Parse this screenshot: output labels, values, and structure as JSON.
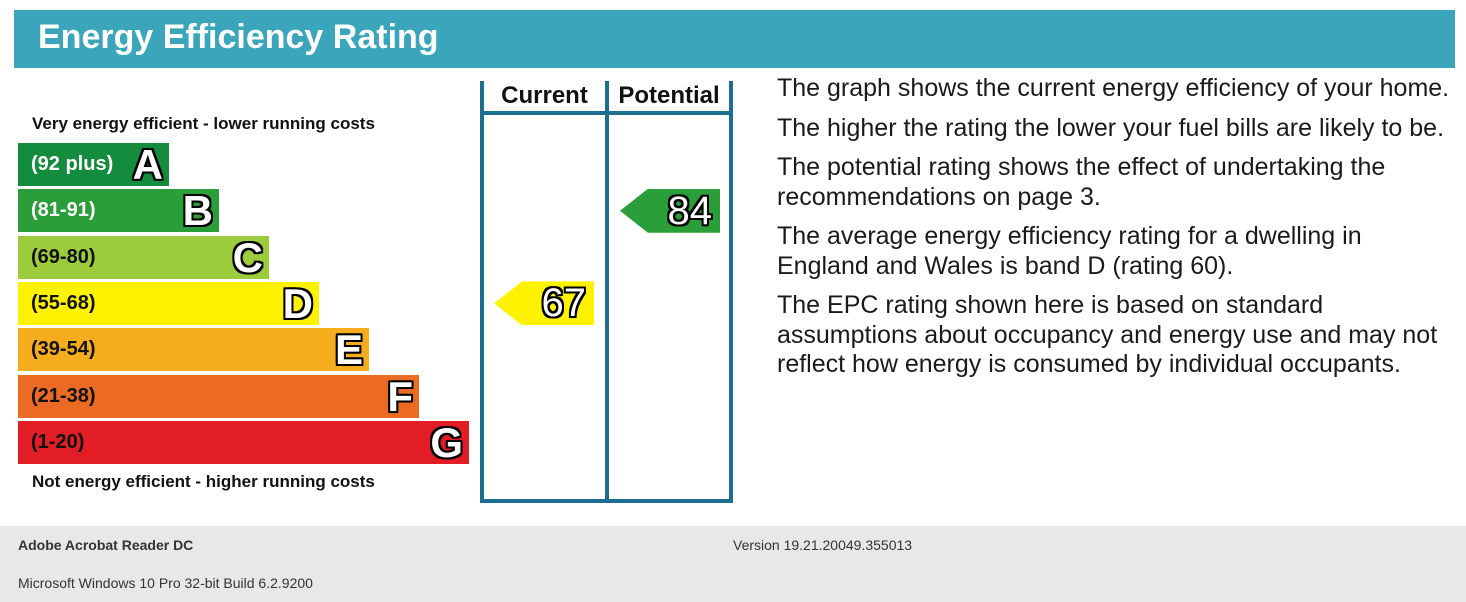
{
  "header": {
    "title": "Energy Efficiency Rating"
  },
  "chart_data": {
    "type": "bar",
    "title": "Energy Efficiency Rating",
    "top_note": "Very energy efficient - lower running costs",
    "bottom_note": "Not energy efficient - higher running costs",
    "bands": [
      {
        "letter": "A",
        "range": "(92 plus)",
        "color": "#138c3e",
        "text_color": "#ffffff"
      },
      {
        "letter": "B",
        "range": "(81-91)",
        "color": "#2a9f39",
        "text_color": "#ffffff"
      },
      {
        "letter": "C",
        "range": "(69-80)",
        "color": "#9ccb3b",
        "text_color": "#111111"
      },
      {
        "letter": "D",
        "range": "(55-68)",
        "color": "#fff200",
        "text_color": "#111111"
      },
      {
        "letter": "E",
        "range": "(39-54)",
        "color": "#f6ad1d",
        "text_color": "#111111"
      },
      {
        "letter": "F",
        "range": "(21-38)",
        "color": "#ec6b24",
        "text_color": "#111111"
      },
      {
        "letter": "G",
        "range": "(1-20)",
        "color": "#e21d26",
        "text_color": "#111111"
      }
    ],
    "columns": [
      {
        "label": "Current",
        "value": 67,
        "band": "D",
        "color": "#fff200"
      },
      {
        "label": "Potential",
        "value": 84,
        "band": "B",
        "color": "#2a9f39"
      }
    ]
  },
  "description": [
    "The graph shows the current energy efficiency of your home.",
    "The higher the rating the lower your fuel bills are likely to be.",
    "The potential rating shows the effect of undertaking the recommendations on page 3.",
    "The average energy efficiency rating for a dwelling in England and Wales is band D (rating 60).",
    "The EPC rating shown here is based on standard assumptions about occupancy and energy use and may not reflect how energy is consumed by individual occupants."
  ],
  "footer": {
    "app_name": "Adobe Acrobat Reader DC",
    "version": "Version 19.21.20049.355013",
    "os": "Microsoft Windows 10 Pro 32-bit Build 6.2.9200"
  }
}
